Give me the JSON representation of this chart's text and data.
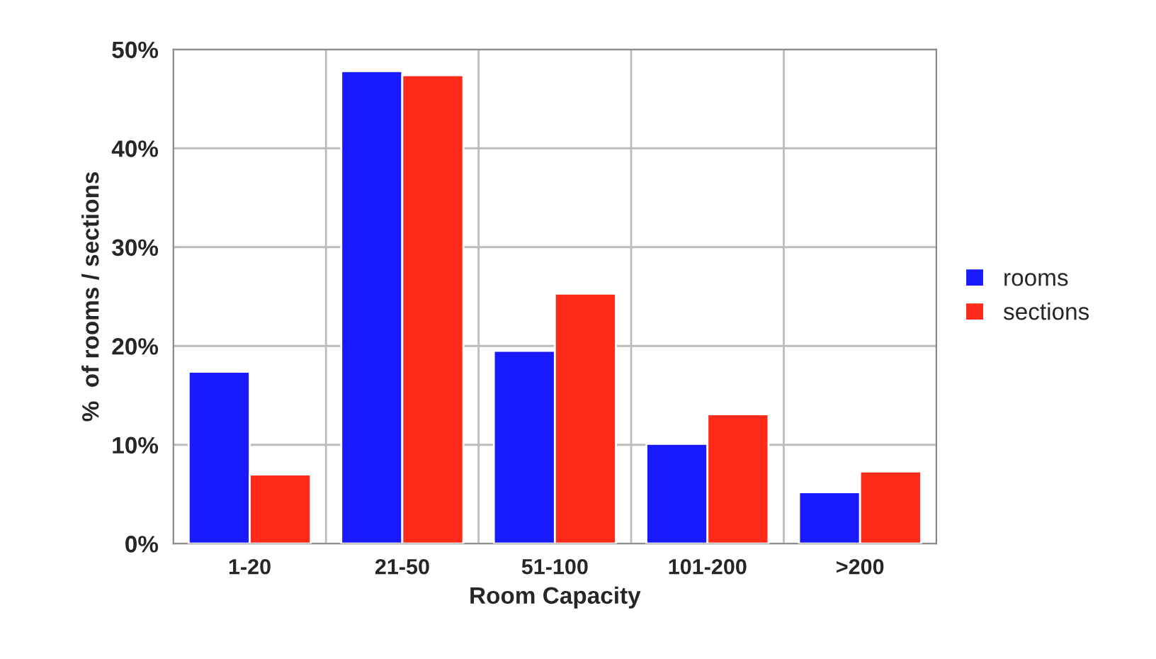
{
  "chart_data": {
    "type": "bar",
    "xlabel": "Room Capacity",
    "ylabel": "%  of rooms / sections",
    "categories": [
      "1-20",
      "21-50",
      "51-100",
      "101-200",
      ">200"
    ],
    "series": [
      {
        "name": "rooms",
        "color": "#1a1aff",
        "values": [
          17.4,
          47.8,
          19.5,
          10.1,
          5.2
        ]
      },
      {
        "name": "sections",
        "color": "#ff2a1a",
        "values": [
          7.0,
          47.4,
          25.3,
          13.1,
          7.3
        ]
      }
    ],
    "ylim": [
      0,
      50
    ],
    "yticks": [
      {
        "value": 0,
        "label": "0%"
      },
      {
        "value": 10,
        "label": "10%"
      },
      {
        "value": 20,
        "label": "20%"
      },
      {
        "value": 30,
        "label": "30%"
      },
      {
        "value": 40,
        "label": "40%"
      },
      {
        "value": 50,
        "label": "50%"
      }
    ],
    "grid": true,
    "legend": "right"
  }
}
